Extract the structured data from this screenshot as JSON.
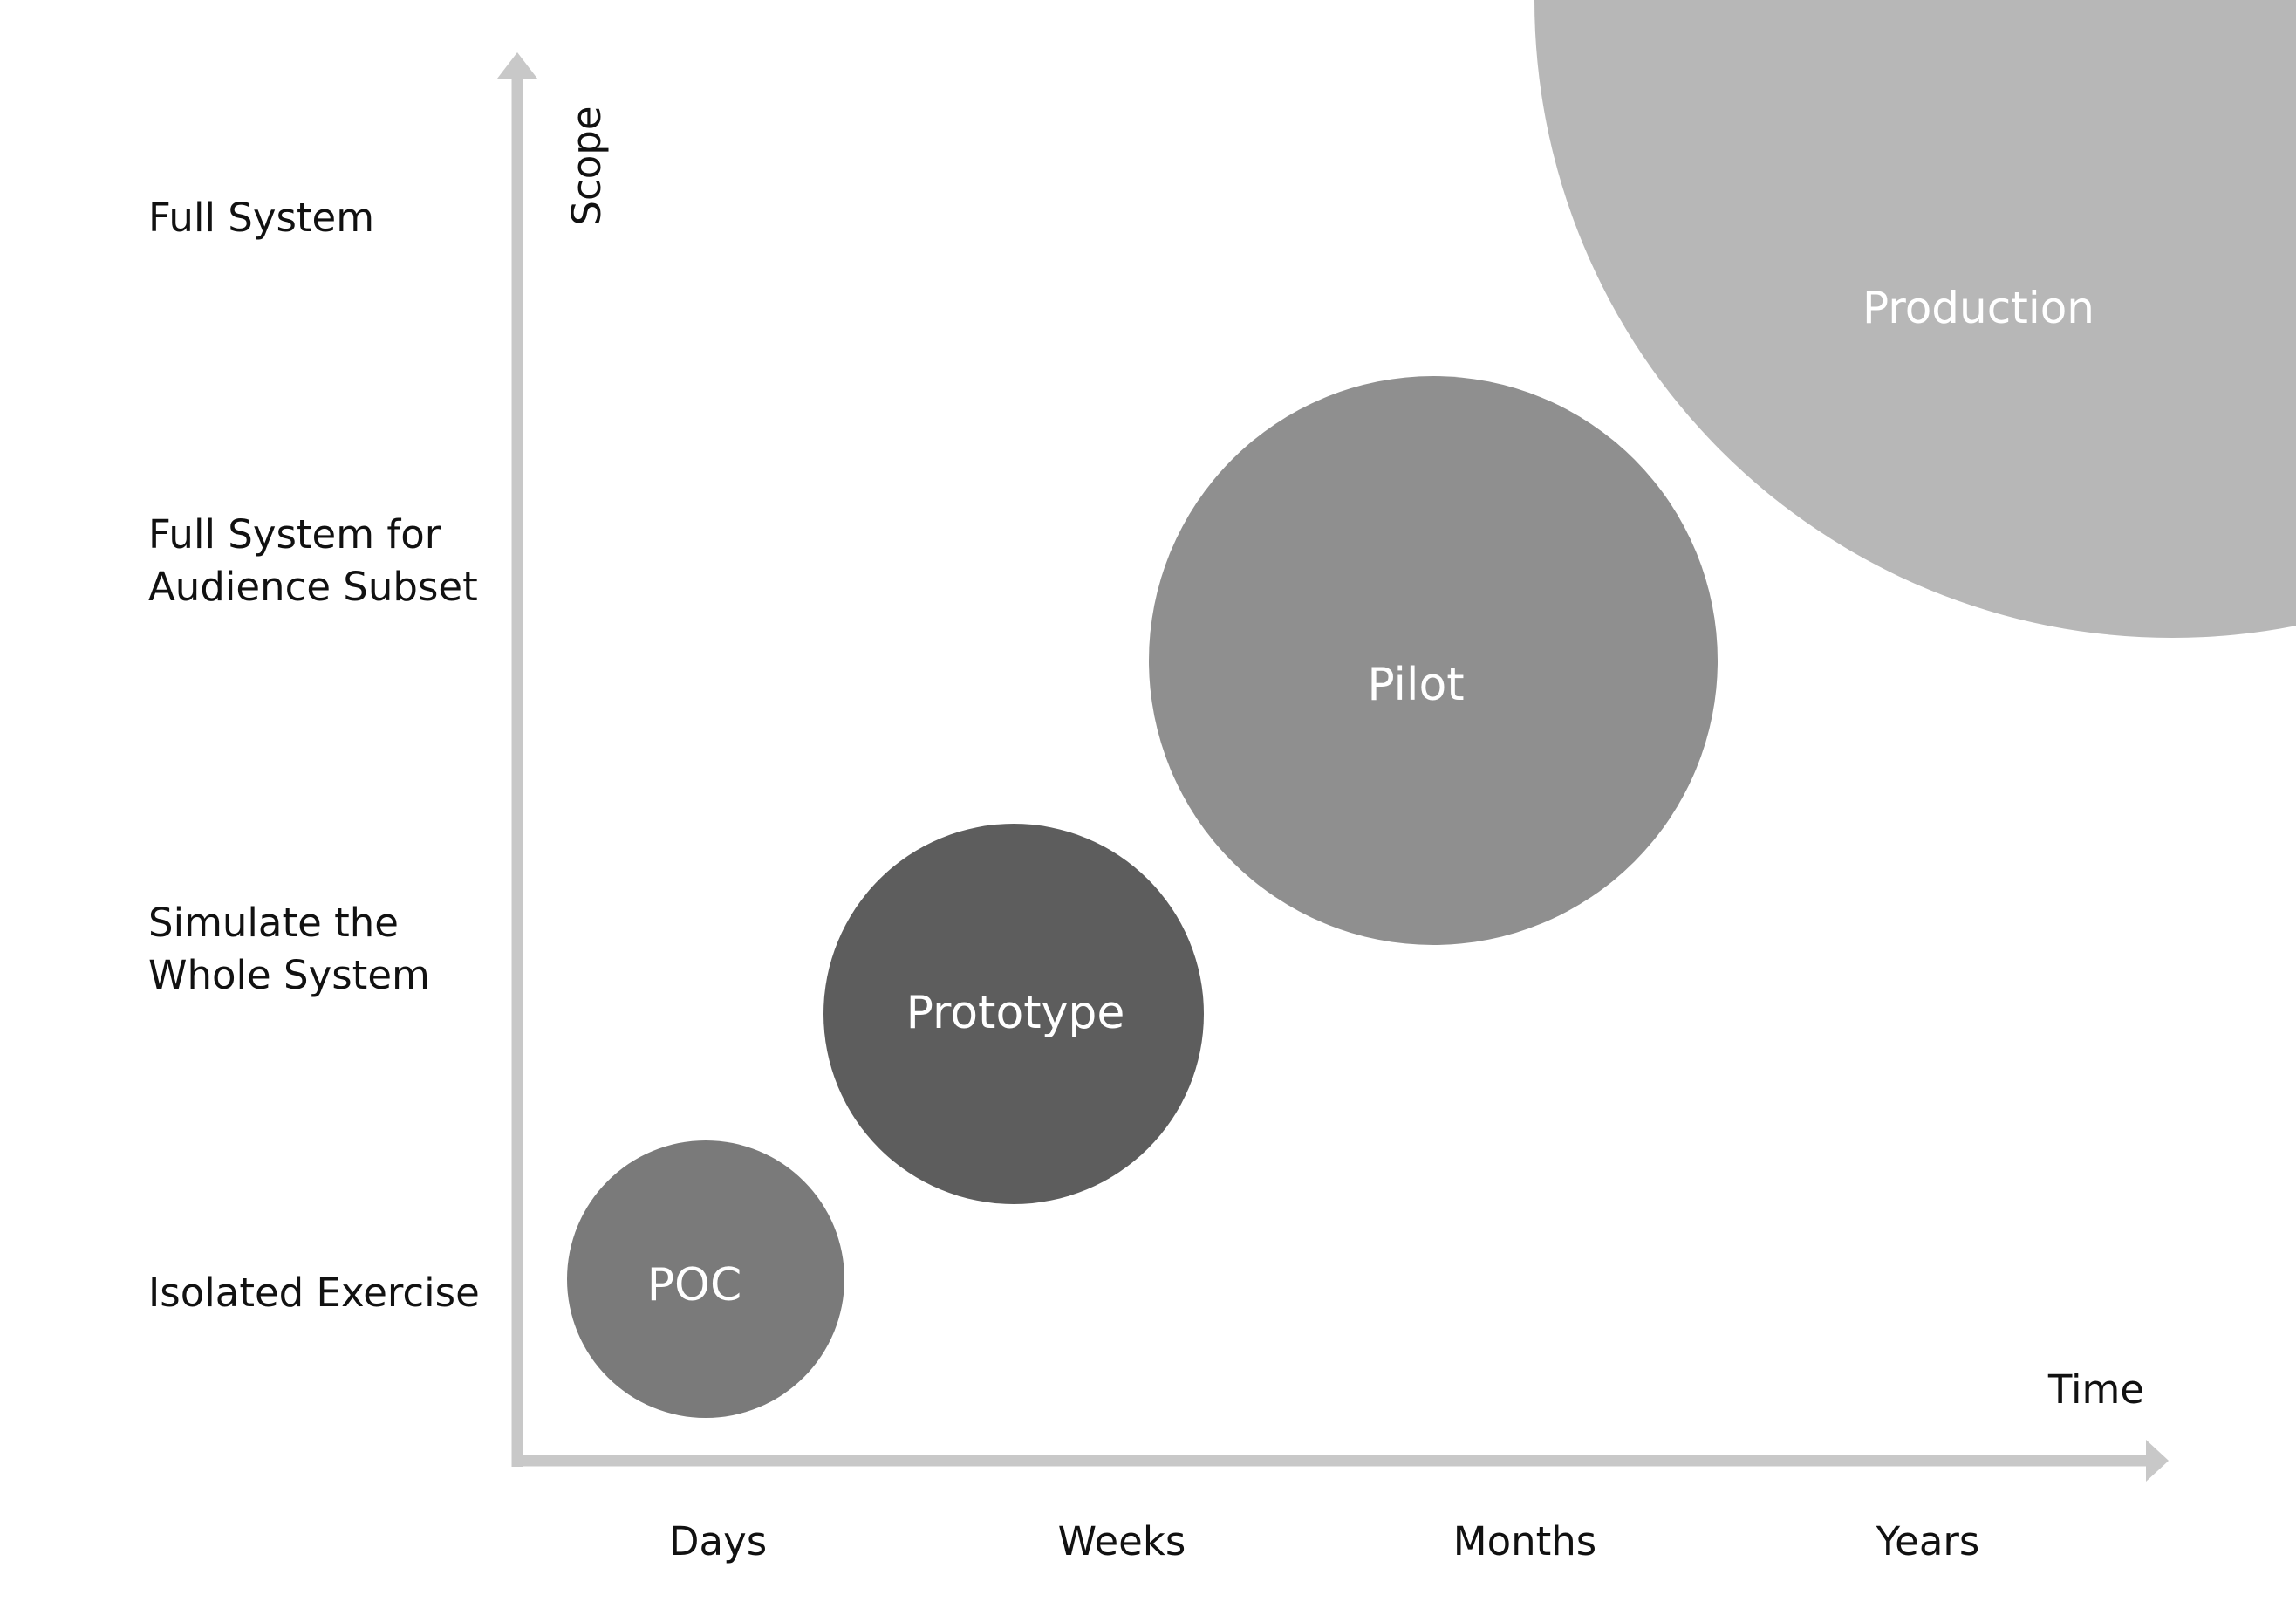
{
  "axes": {
    "y_title": "Scope",
    "x_title": "Time",
    "color": "#c8c8c8"
  },
  "y_levels": [
    {
      "lines": [
        "Full System"
      ]
    },
    {
      "lines": [
        "Full System for",
        "Audience Subset"
      ]
    },
    {
      "lines": [
        "Simulate the",
        "Whole System"
      ]
    },
    {
      "lines": [
        "Isolated Exercise"
      ]
    }
  ],
  "x_levels": [
    "Days",
    "Weeks",
    "Months",
    "Years"
  ],
  "stages": [
    {
      "label": "POC",
      "color": "#7a7a7a",
      "time": "Days",
      "scope": "Isolated Exercise"
    },
    {
      "label": "Prototype",
      "color": "#5d5d5d",
      "time": "Weeks",
      "scope": "Simulate the Whole System"
    },
    {
      "label": "Pilot",
      "color": "#8f8f8f",
      "time": "Months",
      "scope": "Full System for Audience Subset"
    },
    {
      "label": "Production",
      "color": "#b7b7b7",
      "time": "Years",
      "scope": "Full System"
    }
  ]
}
